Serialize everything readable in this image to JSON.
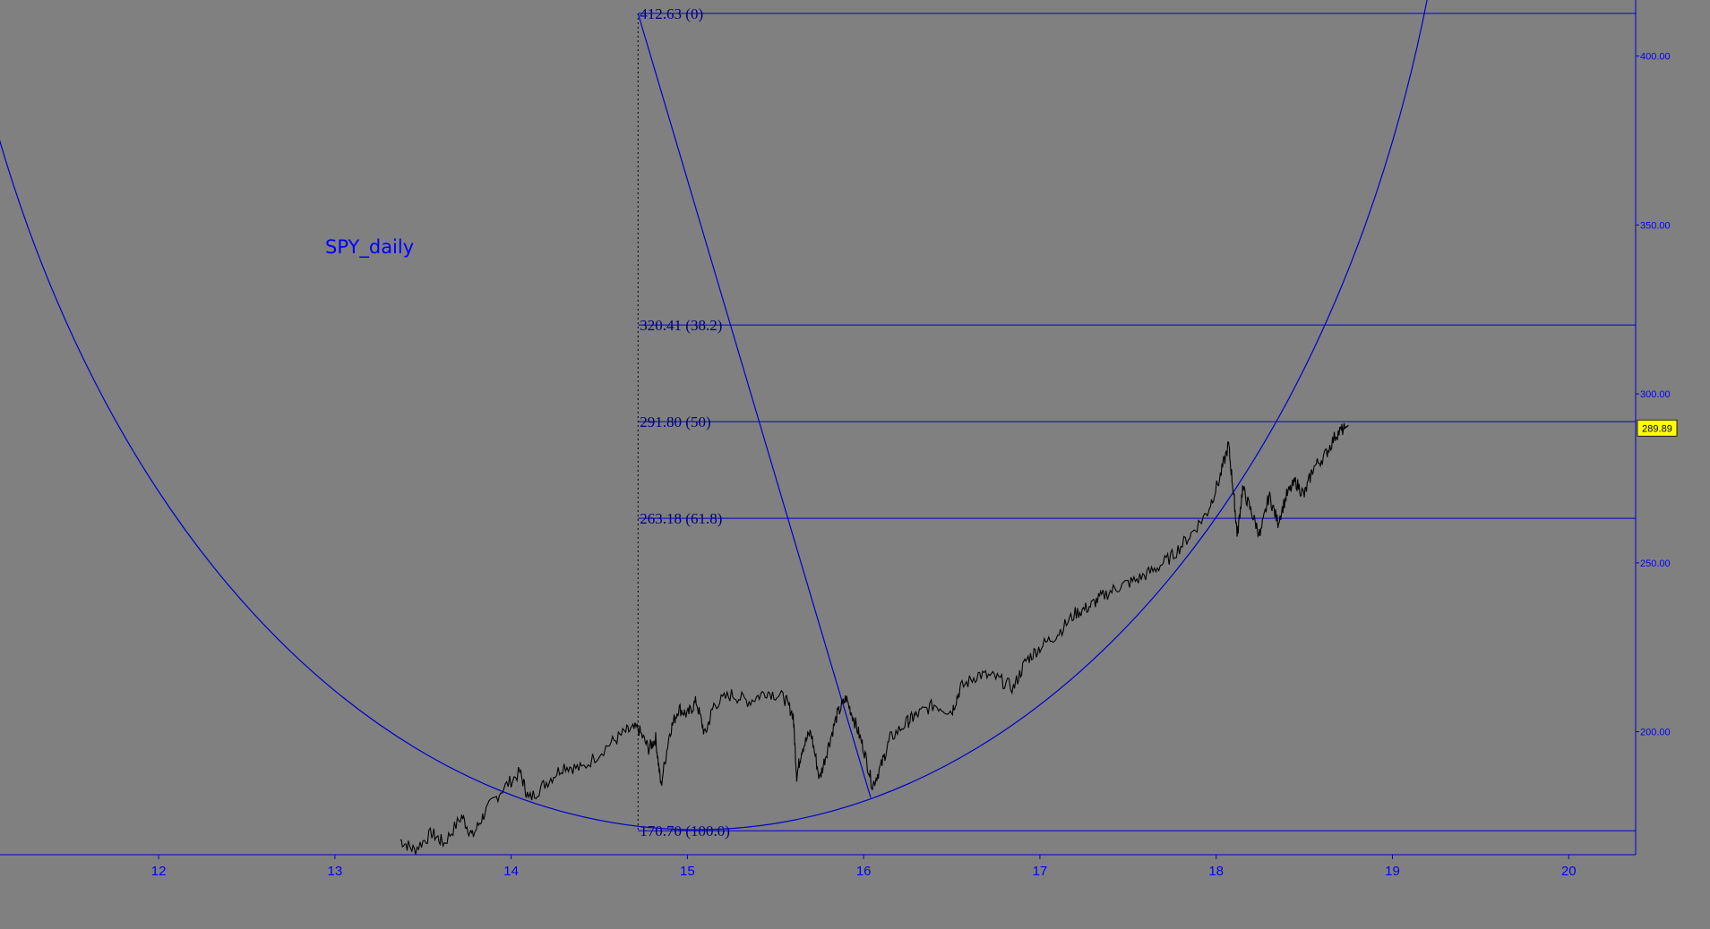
{
  "chart_data": {
    "type": "line",
    "title": "SPY_daily",
    "x_axis": {
      "ticks": [
        12,
        13,
        14,
        15,
        16,
        17,
        18,
        19,
        20
      ],
      "range": [
        11.1,
        20.38
      ]
    },
    "y_axis": {
      "ticks": [
        "200.00",
        "250.00",
        "300.00",
        "350.00",
        "400.00"
      ],
      "tick_values": [
        200,
        250,
        300,
        350,
        400
      ],
      "range": [
        163.6,
        416.6
      ]
    },
    "last_price": {
      "label": "289.89",
      "value": 289.89,
      "x": 18.73
    },
    "fib_levels": [
      {
        "price": 412.63,
        "label": "412.63 (0)"
      },
      {
        "price": 320.41,
        "label": "320.41 (38.2)"
      },
      {
        "price": 291.8,
        "label": "291.80 (50)"
      },
      {
        "price": 263.18,
        "label": "263.18 (61.8)"
      },
      {
        "price": 170.7,
        "label": "170.70 (100.0)"
      }
    ],
    "fib_anchor": {
      "x": 14.72,
      "high": 412.63,
      "low": 170.7
    },
    "trend_line": [
      {
        "x": 14.72,
        "y": 412.63
      },
      {
        "x": 16.04,
        "y": 180.5
      }
    ],
    "arc": {
      "center_x": 15.05,
      "center_y": 516,
      "radius_x": 4.33,
      "radius_y": 345
    },
    "series": [
      {
        "values": [
          {
            "x": 13.37,
            "y": 168
          },
          {
            "x": 13.45,
            "y": 165
          },
          {
            "x": 13.55,
            "y": 170
          },
          {
            "x": 13.62,
            "y": 167
          },
          {
            "x": 13.72,
            "y": 175
          },
          {
            "x": 13.78,
            "y": 169
          },
          {
            "x": 13.85,
            "y": 176
          },
          {
            "x": 13.95,
            "y": 183
          },
          {
            "x": 14.05,
            "y": 188
          },
          {
            "x": 14.1,
            "y": 180
          },
          {
            "x": 14.2,
            "y": 185
          },
          {
            "x": 14.3,
            "y": 190
          },
          {
            "x": 14.4,
            "y": 189
          },
          {
            "x": 14.55,
            "y": 196
          },
          {
            "x": 14.65,
            "y": 200
          },
          {
            "x": 14.72,
            "y": 201
          },
          {
            "x": 14.78,
            "y": 195
          },
          {
            "x": 14.82,
            "y": 198
          },
          {
            "x": 14.85,
            "y": 184
          },
          {
            "x": 14.9,
            "y": 200
          },
          {
            "x": 14.95,
            "y": 207
          },
          {
            "x": 15.0,
            "y": 205
          },
          {
            "x": 15.05,
            "y": 209
          },
          {
            "x": 15.1,
            "y": 199
          },
          {
            "x": 15.15,
            "y": 208
          },
          {
            "x": 15.25,
            "y": 211
          },
          {
            "x": 15.35,
            "y": 209
          },
          {
            "x": 15.45,
            "y": 212
          },
          {
            "x": 15.55,
            "y": 210
          },
          {
            "x": 15.6,
            "y": 205
          },
          {
            "x": 15.62,
            "y": 187
          },
          {
            "x": 15.65,
            "y": 195
          },
          {
            "x": 15.7,
            "y": 200
          },
          {
            "x": 15.75,
            "y": 186
          },
          {
            "x": 15.8,
            "y": 196
          },
          {
            "x": 15.85,
            "y": 205
          },
          {
            "x": 15.9,
            "y": 210
          },
          {
            "x": 15.95,
            "y": 203
          },
          {
            "x": 16.0,
            "y": 195
          },
          {
            "x": 16.05,
            "y": 184
          },
          {
            "x": 16.1,
            "y": 190
          },
          {
            "x": 16.15,
            "y": 198
          },
          {
            "x": 16.25,
            "y": 203
          },
          {
            "x": 16.3,
            "y": 205
          },
          {
            "x": 16.4,
            "y": 208
          },
          {
            "x": 16.5,
            "y": 206
          },
          {
            "x": 16.55,
            "y": 213
          },
          {
            "x": 16.65,
            "y": 217
          },
          {
            "x": 16.75,
            "y": 216
          },
          {
            "x": 16.85,
            "y": 213
          },
          {
            "x": 16.92,
            "y": 221
          },
          {
            "x": 17.0,
            "y": 225
          },
          {
            "x": 17.1,
            "y": 229
          },
          {
            "x": 17.2,
            "y": 235
          },
          {
            "x": 17.28,
            "y": 237
          },
          {
            "x": 17.35,
            "y": 240
          },
          {
            "x": 17.45,
            "y": 243
          },
          {
            "x": 17.55,
            "y": 245
          },
          {
            "x": 17.65,
            "y": 248
          },
          {
            "x": 17.75,
            "y": 252
          },
          {
            "x": 17.85,
            "y": 258
          },
          {
            "x": 17.95,
            "y": 265
          },
          {
            "x": 18.02,
            "y": 275
          },
          {
            "x": 18.07,
            "y": 285
          },
          {
            "x": 18.1,
            "y": 270
          },
          {
            "x": 18.12,
            "y": 258
          },
          {
            "x": 18.15,
            "y": 272
          },
          {
            "x": 18.2,
            "y": 265
          },
          {
            "x": 18.25,
            "y": 258
          },
          {
            "x": 18.3,
            "y": 270
          },
          {
            "x": 18.35,
            "y": 262
          },
          {
            "x": 18.4,
            "y": 270
          },
          {
            "x": 18.45,
            "y": 274
          },
          {
            "x": 18.5,
            "y": 270
          },
          {
            "x": 18.55,
            "y": 278
          },
          {
            "x": 18.62,
            "y": 282
          },
          {
            "x": 18.68,
            "y": 288
          },
          {
            "x": 18.73,
            "y": 289.89
          }
        ]
      }
    ],
    "grid": false,
    "colors": {
      "background": "#808080",
      "lines": "#0000cd",
      "price": "#000000",
      "fib_text": "#000080",
      "price_tag": "#ffff00"
    }
  }
}
